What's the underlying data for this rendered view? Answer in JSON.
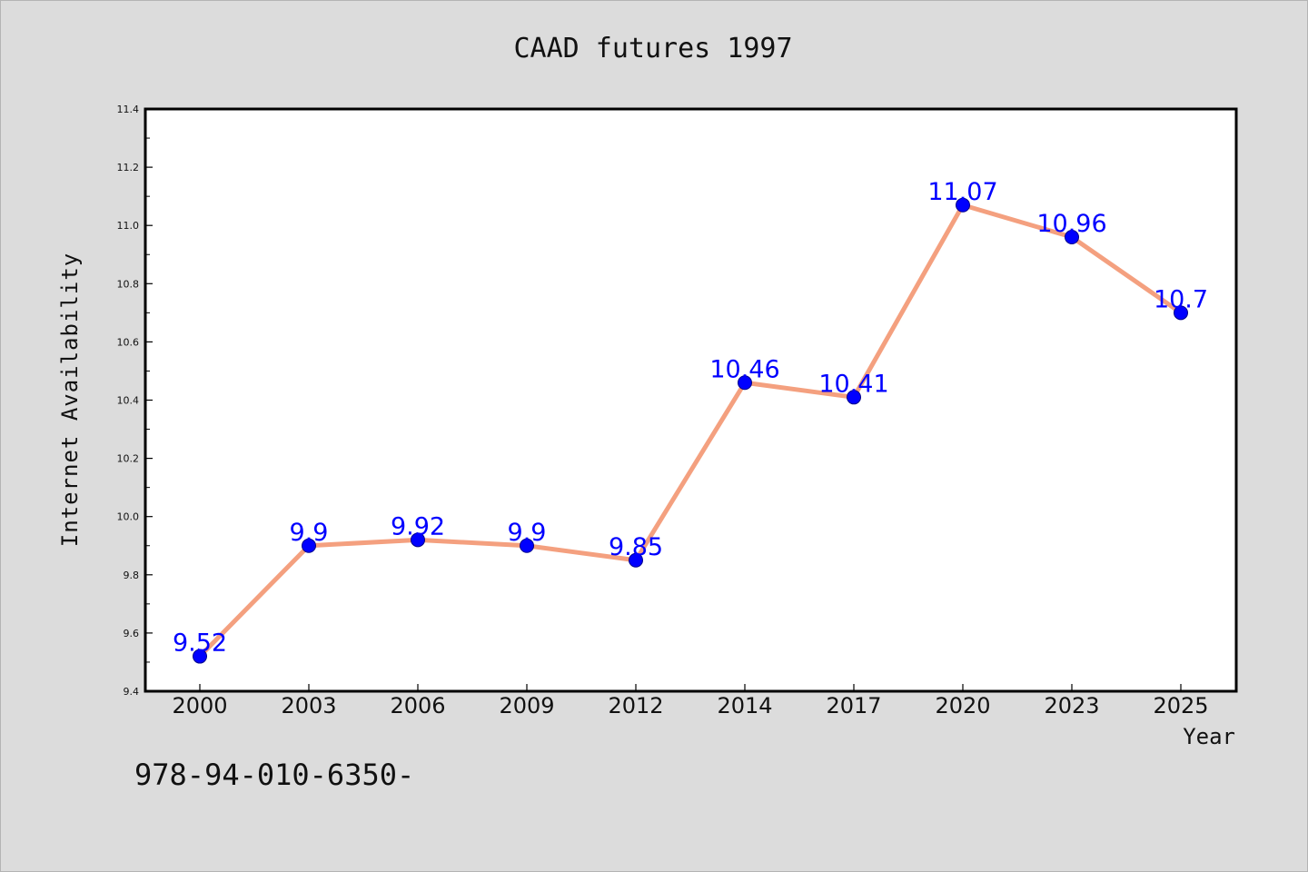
{
  "chart_data": {
    "type": "line",
    "title": "CAAD futures 1997",
    "xlabel": "Year",
    "ylabel": "Internet Availability",
    "categories": [
      "2000",
      "2003",
      "2006",
      "2009",
      "2012",
      "2014",
      "2017",
      "2020",
      "2023",
      "2025"
    ],
    "series": [
      {
        "values": [
          9.52,
          9.9,
          9.92,
          9.9,
          9.85,
          10.46,
          10.41,
          11.07,
          10.96,
          10.7
        ],
        "line_color": "#f4a07f",
        "marker_color": "#0000ff"
      }
    ],
    "data_labels": [
      "9.52",
      "9.9",
      "9.92",
      "9.9",
      "9.85",
      "10.46",
      "10.41",
      "11.07",
      "10.96",
      "10.7"
    ],
    "ylim": [
      9.4,
      11.4
    ],
    "yticks": [
      "9.4",
      "9.6",
      "9.8",
      "10.0",
      "10.2",
      "10.4",
      "10.6",
      "10.8",
      "11.0",
      "11.2",
      "11.4"
    ],
    "grid": false,
    "legend": "none",
    "background": "#dcdcdc",
    "plot_background": "#ffffff"
  },
  "annotation": "978-94-010-6350-"
}
